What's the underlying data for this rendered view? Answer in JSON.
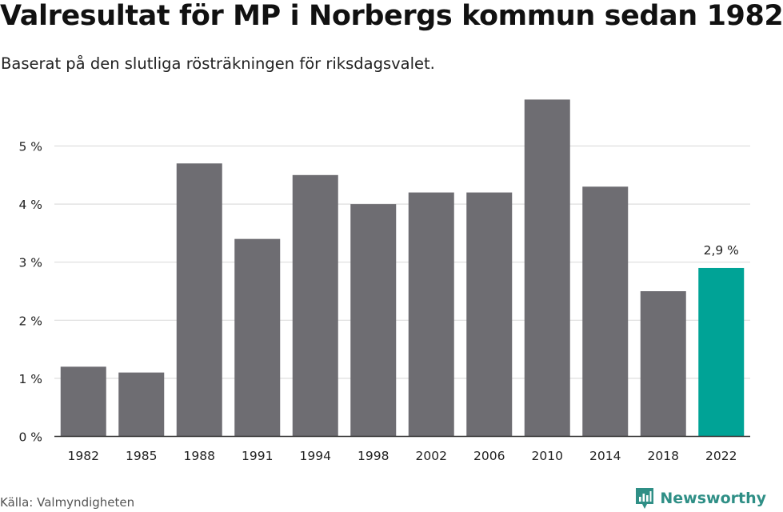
{
  "title": "Valresultat för MP i Norbergs kommun sedan 1982",
  "subtitle": "Baserat på den slutliga rösträkningen för riksdagsvalet.",
  "source": "Källa: Valmyndigheten",
  "brand": {
    "name": "Newsworthy",
    "logo_icon": "newsworthy-logo-icon"
  },
  "colors": {
    "bar": "#6e6d72",
    "highlight": "#00a396",
    "grid": "#dddddd",
    "axis": "#333333",
    "text": "#222222"
  },
  "chart_data": {
    "type": "bar",
    "title": "Valresultat för MP i Norbergs kommun sedan 1982",
    "subtitle": "Baserat på den slutliga rösträkningen för riksdagsvalet.",
    "xlabel": "",
    "ylabel": "",
    "categories": [
      "1982",
      "1985",
      "1988",
      "1991",
      "1994",
      "1998",
      "2002",
      "2006",
      "2010",
      "2014",
      "2018",
      "2022"
    ],
    "values": [
      1.2,
      1.1,
      4.7,
      3.4,
      4.5,
      4.0,
      4.2,
      4.2,
      5.8,
      4.3,
      2.5,
      2.9
    ],
    "ylim": [
      0,
      6
    ],
    "yticks": [
      0,
      1,
      2,
      3,
      4,
      5
    ],
    "ytick_labels": [
      "0 %",
      "1 %",
      "2 %",
      "3 %",
      "4 %",
      "5 %"
    ],
    "highlight_index": 11,
    "annotations": [
      {
        "category": "2022",
        "text": "2,9 %"
      }
    ],
    "grid": true,
    "legend": "none"
  }
}
